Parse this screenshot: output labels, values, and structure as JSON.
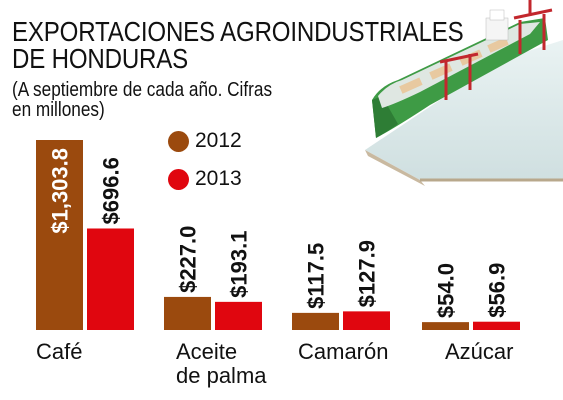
{
  "title_line1": "EXPORTACIONES AGROINDUSTRIALES",
  "title_line2": "DE HONDURAS",
  "subtitle_line1": "(A septiembre de cada año. Cifras",
  "subtitle_line2": "en millones)",
  "colors": {
    "y2012": "#9b4a0e",
    "y2013": "#e0060f",
    "ship_hull": "#3e9b45",
    "deck": "#d9e9ea",
    "crane": "#c2272d"
  },
  "legend": [
    {
      "label": "2012",
      "color": "#9b4a0e"
    },
    {
      "label": "2013",
      "color": "#e0060f"
    }
  ],
  "category_labels": {
    "cafe": "Café",
    "aceite_1": "Aceite",
    "aceite_2": "de palma",
    "camaron": "Camarón",
    "azucar": "Azúcar"
  },
  "chart_data": {
    "type": "bar",
    "title": "EXPORTACIONES AGROINDUSTRIALES DE HONDURAS",
    "subtitle": "(A septiembre de cada año. Cifras en millones)",
    "categories": [
      "Café",
      "Aceite de palma",
      "Camarón",
      "Azúcar"
    ],
    "series": [
      {
        "name": "2012",
        "color": "#9b4a0e",
        "values": [
          1303.8,
          227.0,
          117.5,
          54.0
        ],
        "labels": [
          "$1,303.8",
          "$227.0",
          "$117.5",
          "$54.0"
        ]
      },
      {
        "name": "2013",
        "color": "#e0060f",
        "values": [
          696.6,
          193.1,
          127.9,
          56.9
        ],
        "labels": [
          "$696.6",
          "$193.1",
          "$127.9",
          "$56.9"
        ]
      }
    ],
    "ylim": [
      0,
      1303.8
    ],
    "grid": false,
    "legend_position": "top-center"
  }
}
